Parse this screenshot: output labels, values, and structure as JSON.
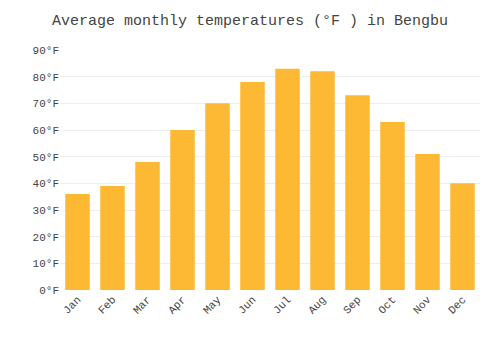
{
  "chart_data": {
    "type": "bar",
    "title": "Average monthly temperatures (°F ) in Bengbu",
    "categories": [
      "Jan",
      "Feb",
      "Mar",
      "Apr",
      "May",
      "Jun",
      "Jul",
      "Aug",
      "Sep",
      "Oct",
      "Nov",
      "Dec"
    ],
    "values": [
      36,
      39,
      48,
      60,
      70,
      78,
      83,
      82,
      73,
      63,
      51,
      40
    ],
    "color": "#FDB933",
    "ylim": [
      0,
      90
    ],
    "yticks": [
      {
        "value": 0,
        "label": "0°F"
      },
      {
        "value": 10,
        "label": "10°F"
      },
      {
        "value": 20,
        "label": "20°F"
      },
      {
        "value": 30,
        "label": "30°F"
      },
      {
        "value": 40,
        "label": "40°F"
      },
      {
        "value": 50,
        "label": "50°F"
      },
      {
        "value": 60,
        "label": "60°F"
      },
      {
        "value": 70,
        "label": "70°F"
      },
      {
        "value": 80,
        "label": "80°F"
      },
      {
        "value": 90,
        "label": "90°F"
      }
    ],
    "grid": true
  }
}
